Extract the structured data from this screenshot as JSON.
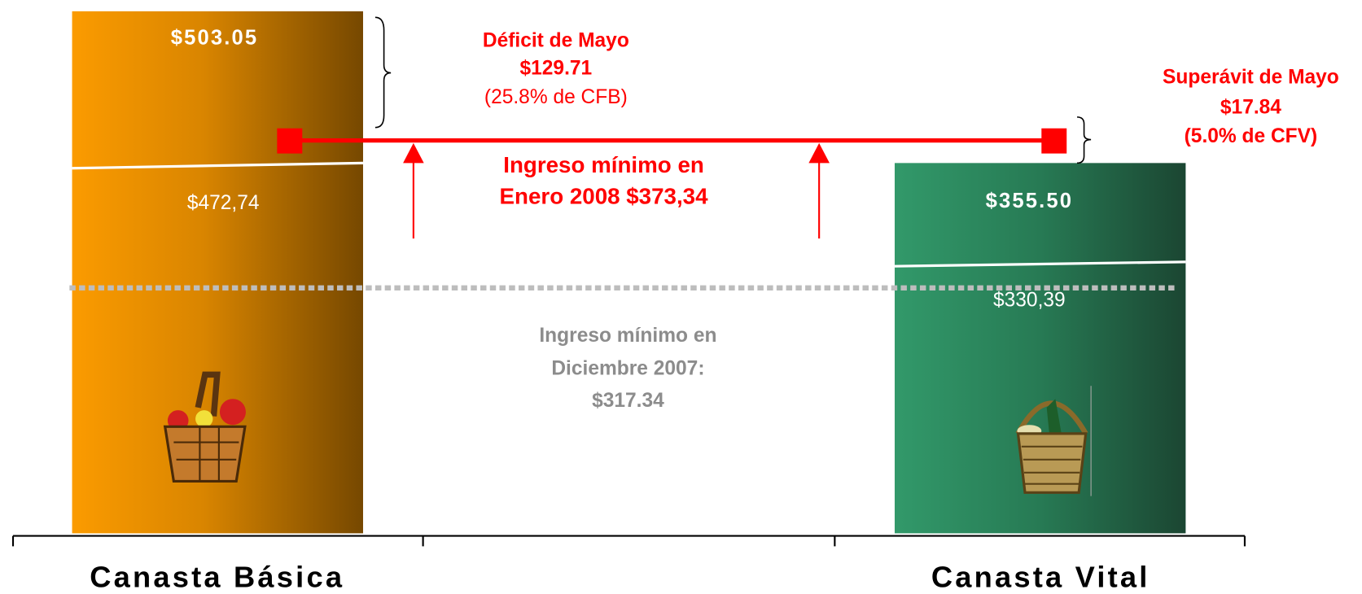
{
  "bars": [
    {
      "label": "Canasta Básica",
      "top_value": "$503.05",
      "mid_value": "$472,74"
    },
    {
      "label": "Canasta Vital",
      "top_value": "$355.50",
      "mid_value": "$330,39"
    }
  ],
  "deficit": {
    "title": "Déficit de Mayo",
    "amount": "$129.71",
    "note": "(25.8% de CFB)"
  },
  "surplus": {
    "title": "Superávit de Mayo",
    "amount": "$17.84",
    "note": "(5.0% de CFV)"
  },
  "january_income": [
    "Ingreso mínimo en",
    "Enero 2008 $373,34"
  ],
  "december_income": [
    "Ingreso mínimo en",
    "Diciembre 2007:",
    "$317.34"
  ]
}
